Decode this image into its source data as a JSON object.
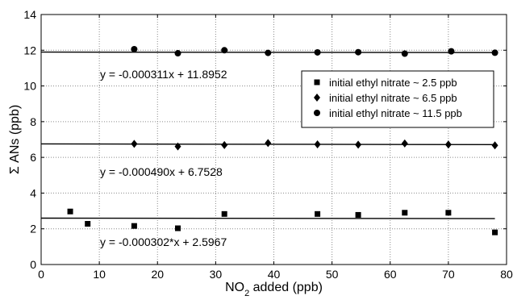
{
  "chart_data": {
    "type": "scatter",
    "title": "",
    "xlabel_main": "NO",
    "xlabel_sub": "2",
    "xlabel_rest": " added (ppb)",
    "ylabel": "Σ ANs (ppb)",
    "xlim": [
      0,
      80
    ],
    "ylim": [
      0,
      14
    ],
    "xticks": [
      0,
      10,
      20,
      30,
      40,
      50,
      60,
      70,
      80
    ],
    "yticks": [
      0,
      2,
      4,
      6,
      8,
      10,
      12,
      14
    ],
    "grid": true,
    "legend_position": "right",
    "series": [
      {
        "name": "initial ethyl nitrate ~ 2.5 ppb",
        "marker": "square",
        "x": [
          5,
          8,
          16,
          23.5,
          31.5,
          47.5,
          54.5,
          62.5,
          70,
          78
        ],
        "y": [
          2.97,
          2.28,
          2.16,
          2.03,
          2.83,
          2.83,
          2.78,
          2.9,
          2.9,
          1.8
        ],
        "fit": {
          "equation": "y = -0.000302*x + 2.5967",
          "slope": -0.000302,
          "intercept": 2.5967,
          "x_range": [
            0,
            78
          ]
        }
      },
      {
        "name": "initial ethyl nitrate ~  6.5 ppb",
        "marker": "diamond",
        "x": [
          16,
          23.5,
          31.5,
          39,
          47.5,
          54.5,
          62.5,
          70,
          78
        ],
        "y": [
          6.76,
          6.61,
          6.69,
          6.8,
          6.73,
          6.71,
          6.78,
          6.72,
          6.67
        ],
        "fit": {
          "equation": "y = -0.000490x + 6.7528",
          "slope": -0.00049,
          "intercept": 6.7528,
          "x_range": [
            0,
            78
          ]
        }
      },
      {
        "name": "initial ethyl nitrate ~ 11.5 ppb",
        "marker": "circle",
        "x": [
          16,
          23.5,
          31.5,
          39,
          47.5,
          54.5,
          62.5,
          70.5,
          78
        ],
        "y": [
          12.06,
          11.83,
          12.0,
          11.85,
          11.88,
          11.89,
          11.81,
          11.94,
          11.86
        ],
        "fit": {
          "equation": "y = -0.000311x + 11.8952",
          "slope": -0.000311,
          "intercept": 11.8952,
          "x_range": [
            0,
            78
          ]
        }
      }
    ]
  }
}
